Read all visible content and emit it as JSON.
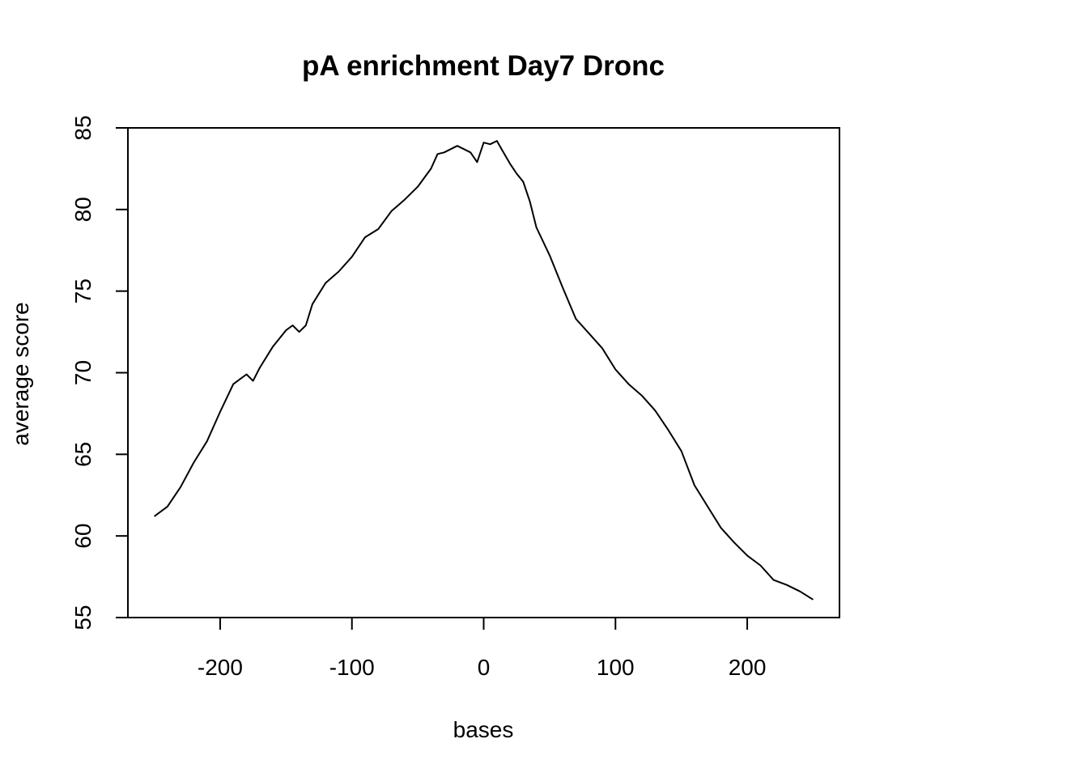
{
  "chart_data": {
    "type": "line",
    "title": "pA enrichment Day7 Dronc",
    "xlabel": "bases",
    "ylabel": "average score",
    "xlim": [
      -270,
      270
    ],
    "ylim": [
      55,
      85
    ],
    "x_ticks": [
      -200,
      -100,
      0,
      100,
      200
    ],
    "x_tick_labels": [
      "-200",
      "-100",
      "0",
      "100",
      "200"
    ],
    "y_ticks": [
      55,
      60,
      65,
      70,
      75,
      80,
      85
    ],
    "y_tick_labels": [
      "55",
      "60",
      "65",
      "70",
      "75",
      "80",
      "85"
    ],
    "grid": false,
    "legend": "none",
    "series": [
      {
        "color": "#000000",
        "x": [
          -250,
          -240,
          -230,
          -220,
          -210,
          -200,
          -190,
          -180,
          -175,
          -170,
          -160,
          -150,
          -145,
          -140,
          -135,
          -130,
          -120,
          -110,
          -100,
          -90,
          -80,
          -70,
          -60,
          -50,
          -40,
          -35,
          -30,
          -20,
          -10,
          -5,
          0,
          5,
          10,
          15,
          20,
          25,
          30,
          35,
          40,
          50,
          60,
          70,
          80,
          90,
          100,
          110,
          120,
          130,
          140,
          150,
          160,
          170,
          180,
          190,
          200,
          210,
          220,
          230,
          240,
          250
        ],
        "y": [
          61.2,
          61.8,
          63.0,
          64.5,
          65.8,
          67.6,
          69.3,
          69.9,
          69.5,
          70.3,
          71.6,
          72.6,
          72.9,
          72.5,
          72.9,
          74.2,
          75.5,
          76.2,
          77.1,
          78.3,
          78.8,
          79.9,
          80.6,
          81.4,
          82.5,
          83.4,
          83.5,
          83.9,
          83.5,
          82.9,
          84.1,
          84.0,
          84.2,
          83.5,
          82.8,
          82.2,
          81.7,
          80.5,
          78.9,
          77.2,
          75.2,
          73.3,
          72.4,
          71.5,
          70.2,
          69.3,
          68.6,
          67.7,
          66.5,
          65.2,
          63.1,
          61.8,
          60.5,
          59.6,
          58.8,
          58.2,
          57.3,
          57.0,
          56.6,
          56.1
        ]
      }
    ]
  }
}
